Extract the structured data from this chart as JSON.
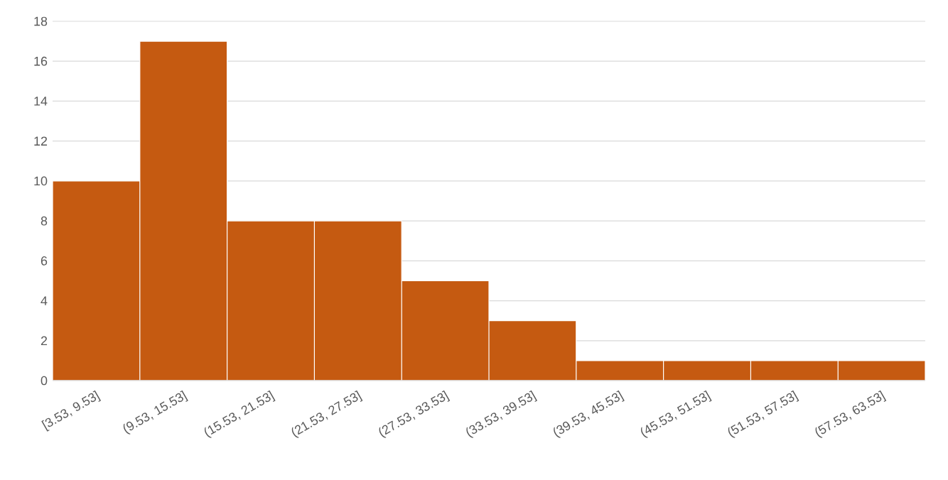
{
  "chart_data": {
    "type": "bar",
    "categories": [
      "[3.53, 9.53]",
      "(9.53, 15.53]",
      "(15.53, 21.53]",
      "(21.53, 27.53]",
      "(27.53, 33.53]",
      "(33.53, 39.53]",
      "(39.53, 45.53]",
      "(45.53, 51.53]",
      "(51.53, 57.53]",
      "(57.53, 63.53]"
    ],
    "values": [
      10,
      17,
      8,
      8,
      5,
      3,
      1,
      1,
      1,
      1
    ],
    "color": "#c55a11",
    "ylim": [
      0,
      18
    ],
    "yticks": [
      0,
      2,
      4,
      6,
      8,
      10,
      12,
      14,
      16,
      18
    ],
    "grid": "y"
  }
}
